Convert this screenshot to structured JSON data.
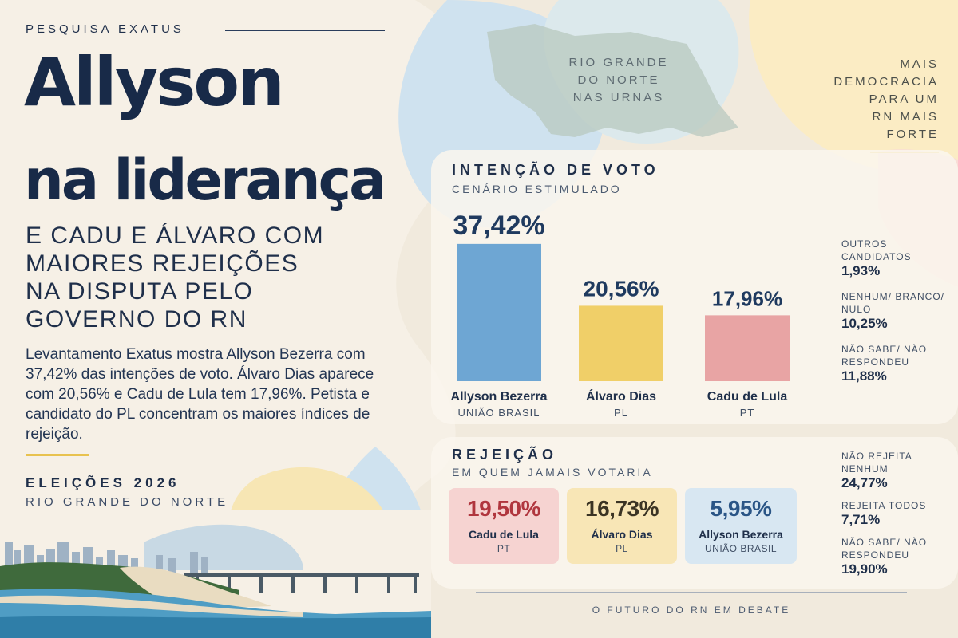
{
  "kicker": "PESQUISA EXATUS",
  "headline": {
    "line1": "Allyson",
    "line2": "na liderança"
  },
  "subheadline": [
    "E CADU E ÁLVARO COM",
    "MAIORES REJEIÇÕES",
    "NA DISPUTA PELO",
    "GOVERNO DO RN"
  ],
  "description": "Levantamento Exatus mostra Allyson Bezerra com 37,42% das intenções de voto. Álvaro Dias aparece com 20,56% e Cadu de Lula tem 17,96%. Petista e candidato do PL concentram os maiores índices de rejeição.",
  "election": {
    "title": "ELEIÇÕES 2026",
    "subtitle": "RIO GRANDE DO NORTE"
  },
  "map_label": [
    "RIO GRANDE",
    "DO NORTE",
    "NAS URNAS"
  ],
  "tagline": [
    "MAIS",
    "DEMOCRACIA",
    "PARA UM",
    "RN MAIS",
    "FORTE"
  ],
  "vote_section": {
    "title": "INTENÇÃO DE VOTO",
    "subtitle": "CENÁRIO ESTIMULADO",
    "others": [
      {
        "label": "OUTROS CANDIDATOS",
        "value": "1,93%"
      },
      {
        "label": "NENHUM/ BRANCO/ NULO",
        "value": "10,25%"
      },
      {
        "label": "NÃO SABE/ NÃO RESPONDEU",
        "value": "11,88%"
      }
    ]
  },
  "rejection_section": {
    "title": "REJEIÇÃO",
    "subtitle": "EM QUEM JAMAIS VOTARIA",
    "cards": [
      {
        "pct": "19,50%",
        "name": "Cadu de Lula",
        "party": "PT",
        "color": "#f6d3d1",
        "pct_color": "#b0363e"
      },
      {
        "pct": "16,73%",
        "name": "Álvaro Dias",
        "party": "PL",
        "color": "#f8e6b6",
        "pct_color": "#3b3424"
      },
      {
        "pct": "5,95%",
        "name": "Allyson Bezerra",
        "party": "UNIÃO BRASIL",
        "color": "#d8e7f2",
        "pct_color": "#2a5586"
      }
    ],
    "others": [
      {
        "label": "NÃO REJEITA NENHUM",
        "value": "24,77%"
      },
      {
        "label": "REJEITA TODOS",
        "value": "7,71%"
      },
      {
        "label": "NÃO SABE/ NÃO RESPONDEU",
        "value": "19,90%"
      }
    ]
  },
  "footer": "O FUTURO DO RN EM DEBATE",
  "chart_data": {
    "type": "bar",
    "title": "INTENÇÃO DE VOTO",
    "subtitle": "CENÁRIO ESTIMULADO",
    "categories": [
      "Allyson Bezerra",
      "Álvaro Dias",
      "Cadu de Lula"
    ],
    "parties": [
      "UNIÃO BRASIL",
      "PL",
      "PT"
    ],
    "values": [
      37.42,
      20.56,
      17.96
    ],
    "value_labels": [
      "37,42%",
      "20,56%",
      "17,96%"
    ],
    "colors": [
      "#6ea6d3",
      "#f0cf68",
      "#e8a4a4"
    ],
    "grid": false,
    "legend": "none"
  }
}
